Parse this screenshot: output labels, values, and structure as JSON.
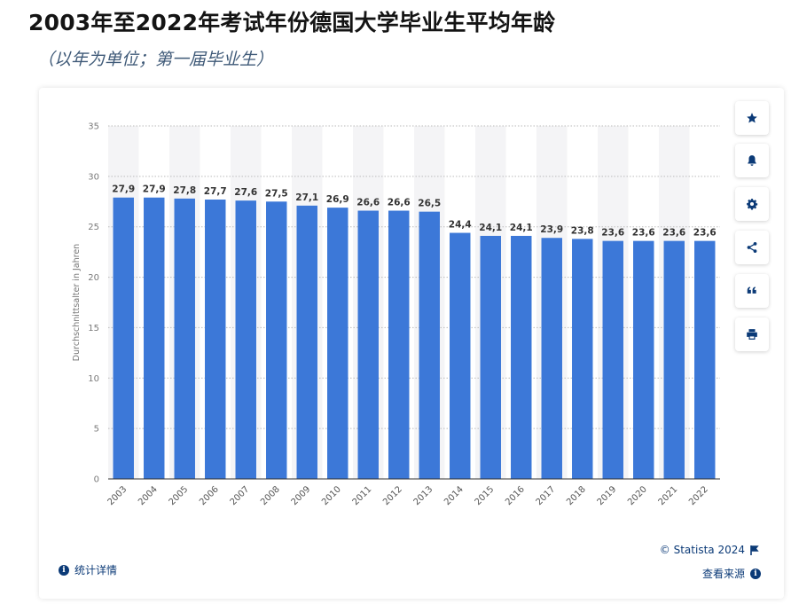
{
  "title": "2003年至2022年考试年份德国大学毕业生平均年龄",
  "subtitle": "（以年为单位；第一届毕业生）",
  "chart_data": {
    "type": "bar",
    "title": "2003年至2022年考试年份德国大学毕业生平均年龄",
    "xlabel": "",
    "ylabel": "Durchschnittsalter in Jahren",
    "ylim": [
      0,
      35
    ],
    "yticks": [
      0,
      5,
      10,
      15,
      20,
      25,
      30,
      35
    ],
    "categories": [
      "2003",
      "2004",
      "2005",
      "2006",
      "2007",
      "2008",
      "2009",
      "2010",
      "2011",
      "2012",
      "2013",
      "2014",
      "2015",
      "2016",
      "2017",
      "2018",
      "2019",
      "2020",
      "2021",
      "2022"
    ],
    "values": [
      27.9,
      27.9,
      27.8,
      27.7,
      27.6,
      27.5,
      27.1,
      26.9,
      26.6,
      26.6,
      26.5,
      24.4,
      24.1,
      24.1,
      23.9,
      23.8,
      23.6,
      23.6,
      23.6,
      23.6
    ],
    "value_labels": [
      "27,9",
      "27,9",
      "27,8",
      "27,7",
      "27,6",
      "27,5",
      "27,1",
      "26,9",
      "26,6",
      "26,6",
      "26,5",
      "24,4",
      "24,1",
      "24,1",
      "23,9",
      "23,8",
      "23,6",
      "23,6",
      "23,6",
      "23,6"
    ],
    "bar_color": "#3c78d8",
    "grid": true
  },
  "footer": {
    "stats_details": "统计详情",
    "copyright": "© Statista 2024",
    "source": "查看来源"
  },
  "toolbar": {
    "icons": [
      "star-icon",
      "bell-icon",
      "gear-icon",
      "share-icon",
      "quote-icon",
      "print-icon"
    ]
  },
  "colors": {
    "accent": "#0b3a77",
    "bar": "#3c78d8"
  }
}
